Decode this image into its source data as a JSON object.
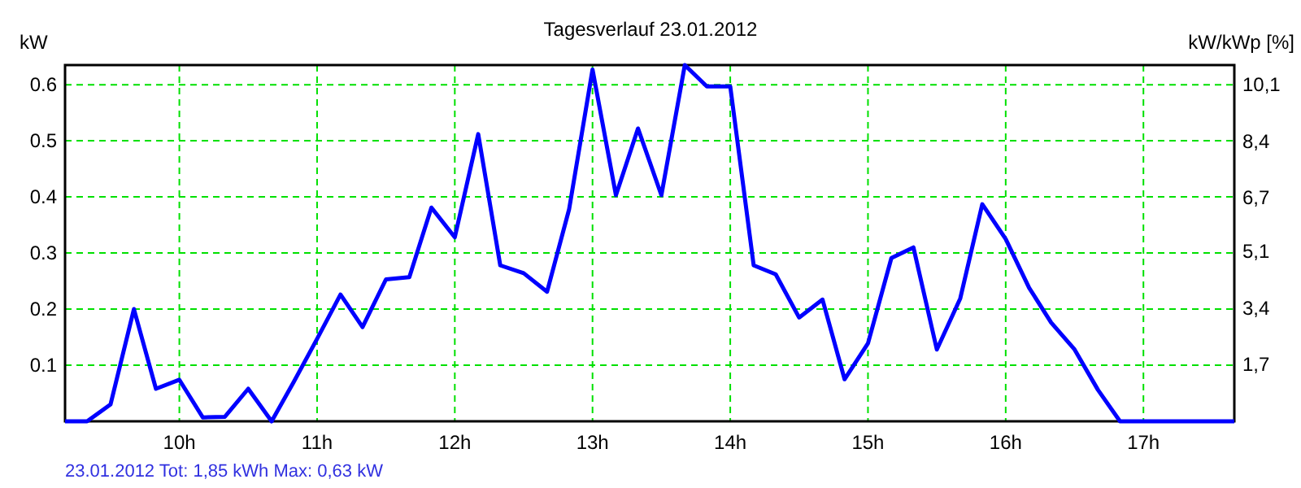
{
  "chart_data": {
    "type": "line",
    "title": "Tagesverlauf 23.01.2012",
    "ylabel": "kW",
    "y2label": "kW/kWp [%]",
    "annotations": [
      "23.01.2012 Tot: 1,85 kWh Max: 0,63 kW"
    ],
    "x": [
      9.17,
      9.33,
      9.5,
      9.67,
      9.83,
      10.0,
      10.17,
      10.33,
      10.5,
      10.67,
      10.83,
      11.0,
      11.17,
      11.33,
      11.5,
      11.67,
      11.83,
      12.0,
      12.17,
      12.33,
      12.5,
      12.67,
      12.83,
      13.0,
      13.17,
      13.33,
      13.5,
      13.67,
      13.83,
      14.0,
      14.17,
      14.33,
      14.5,
      14.67,
      14.83,
      15.0,
      15.17,
      15.33,
      15.5,
      15.67,
      15.83,
      16.0,
      16.17,
      16.33,
      16.5,
      16.67,
      16.83,
      17.0,
      17.17,
      17.33,
      17.5,
      17.66
    ],
    "series": [
      {
        "color": "#0000ff",
        "values": [
          0,
          0,
          0.03,
          0.2,
          0.058,
          0.074,
          0.007,
          0.008,
          0.058,
          0,
          0.07,
          0.147,
          0.226,
          0.168,
          0.253,
          0.257,
          0.381,
          0.328,
          0.512,
          0.278,
          0.264,
          0.231,
          0.378,
          0.627,
          0.403,
          0.522,
          0.403,
          0.635,
          0.597,
          0.597,
          0.278,
          0.262,
          0.185,
          0.217,
          0.075,
          0.139,
          0.291,
          0.31,
          0.128,
          0.219,
          0.387,
          0.325,
          0.238,
          0.176,
          0.128,
          0.056,
          0,
          0,
          0,
          0,
          0,
          0
        ]
      }
    ],
    "xlim": [
      9.17,
      17.66
    ],
    "xticks": [
      {
        "value": 10,
        "label": "10h"
      },
      {
        "value": 11,
        "label": "11h"
      },
      {
        "value": 12,
        "label": "12h"
      },
      {
        "value": 13,
        "label": "13h"
      },
      {
        "value": 14,
        "label": "14h"
      },
      {
        "value": 15,
        "label": "15h"
      },
      {
        "value": 16,
        "label": "16h"
      },
      {
        "value": 17,
        "label": "17h"
      }
    ],
    "ylim": [
      0,
      0.635
    ],
    "yticks": [
      0.1,
      0.2,
      0.3,
      0.4,
      0.5,
      0.6
    ],
    "y2lim": [
      0,
      10.69
    ],
    "y2ticks": [
      {
        "value": 1.7,
        "label": "1,7"
      },
      {
        "value": 3.4,
        "label": "3,4"
      },
      {
        "value": 5.1,
        "label": "5,1"
      },
      {
        "value": 6.7,
        "label": "6,7"
      },
      {
        "value": 8.4,
        "label": "8,4"
      },
      {
        "value": 10.1,
        "label": "10,1"
      }
    ],
    "grid": true,
    "marker": "none",
    "line_style": "solid"
  }
}
